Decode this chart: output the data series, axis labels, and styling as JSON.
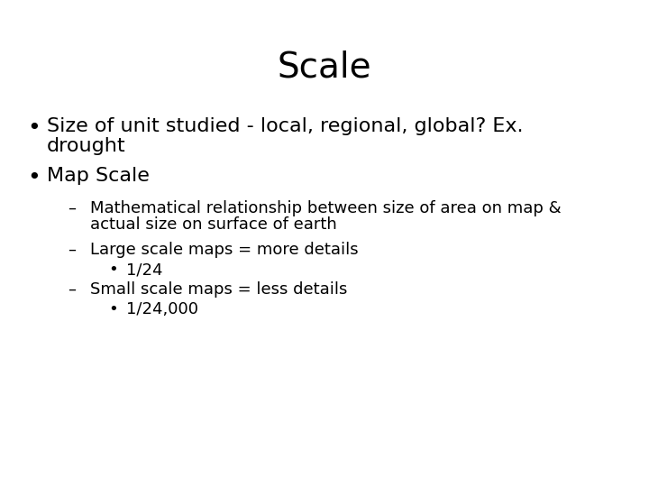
{
  "title": "Scale",
  "title_fontsize": 28,
  "background_color": "#ffffff",
  "text_color": "#000000",
  "bullet1_line1": "Size of unit studied - local, regional, global? Ex.",
  "bullet1_line2": "drought",
  "bullet2": "Map Scale",
  "sub1_line1": "Mathematical relationship between size of area on map &",
  "sub1_line2": "actual size on surface of earth",
  "sub2": "Large scale maps = more details",
  "sub2_bullet": "1/24",
  "sub3": "Small scale maps = less details",
  "sub3_bullet": "1/24,000",
  "bullet_fontsize": 16,
  "sub_fontsize": 13,
  "subsub_fontsize": 13,
  "font": "DejaVu Sans"
}
